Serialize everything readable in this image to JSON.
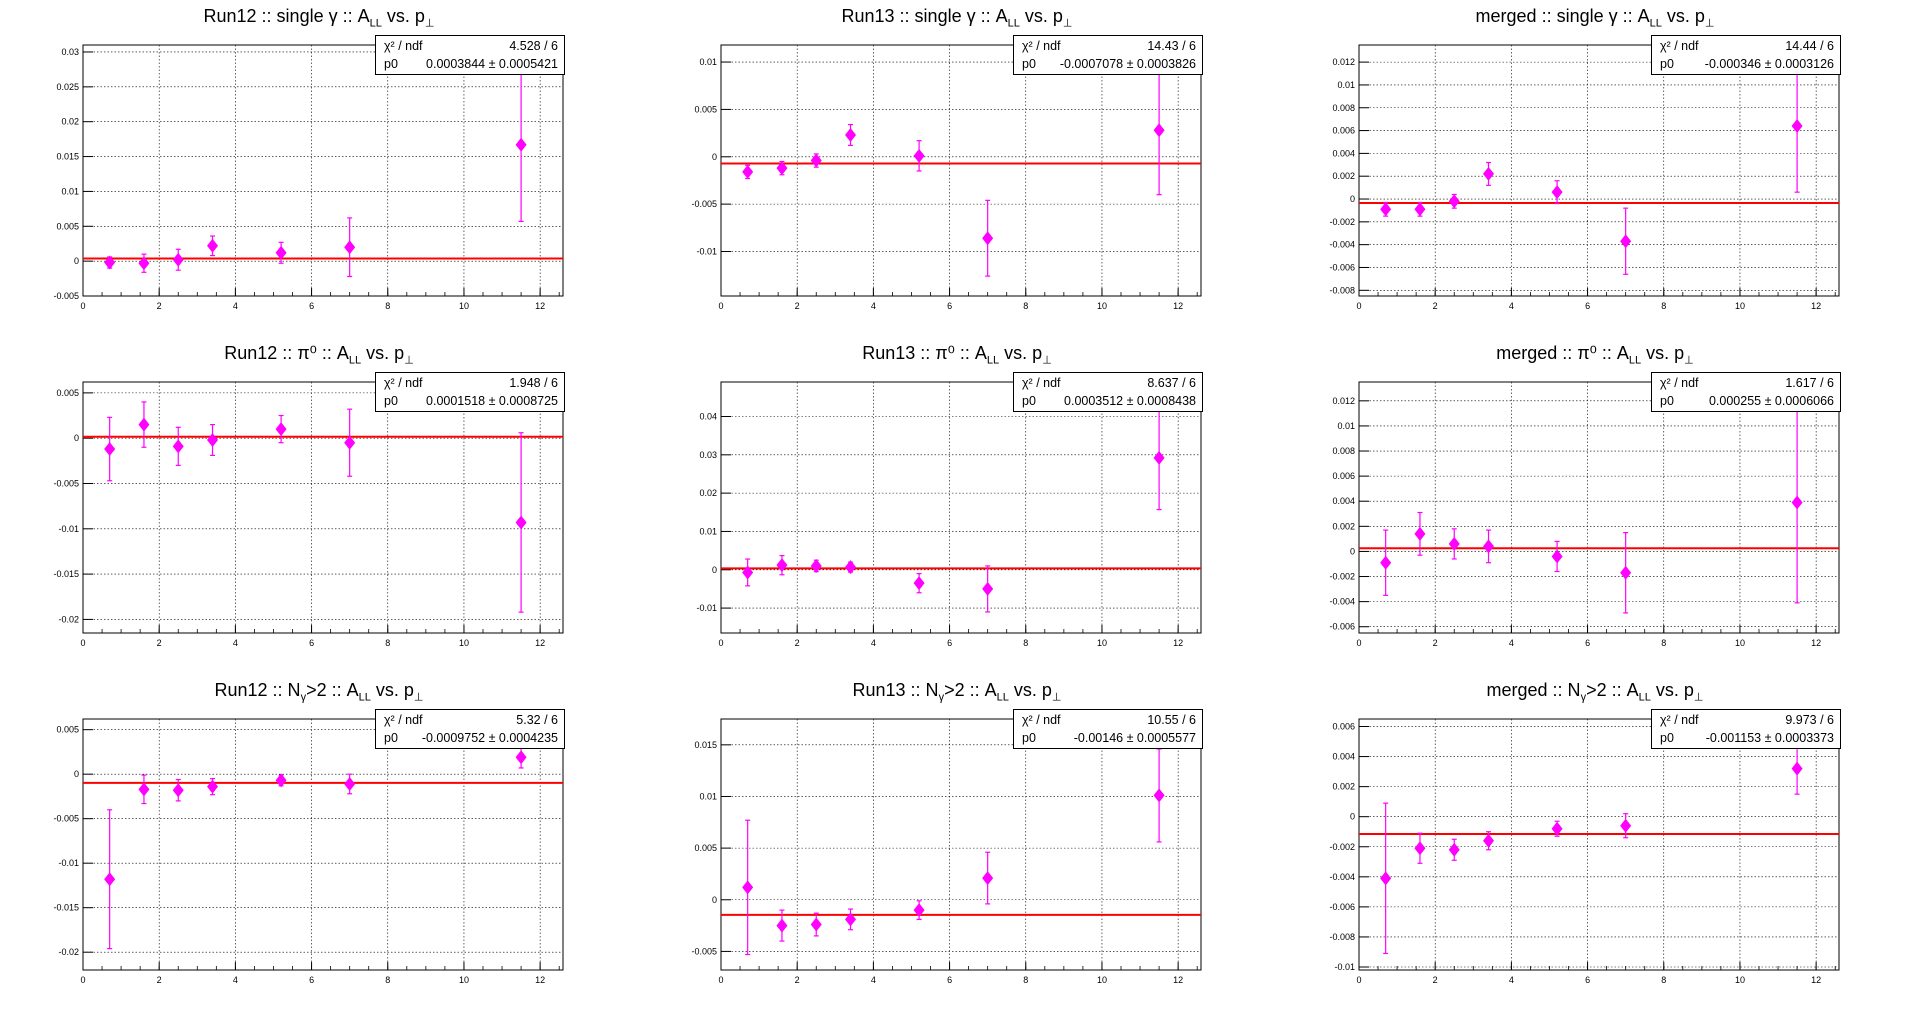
{
  "colors": {
    "marker": "#ff00ff",
    "fit_line": "#ff0000",
    "grid": "#000000"
  },
  "chart_data": [
    {
      "type": "scatter",
      "title": "Run12 :: single γ :: A_LL vs. p_⊥",
      "xlim": [
        0,
        12.6
      ],
      "ylim": [
        -0.005,
        0.031
      ],
      "xticks": [
        "0",
        "2",
        "4",
        "6",
        "8",
        "10",
        "12"
      ],
      "yticks": [
        "-0.005",
        "0",
        "0.005",
        "0.01",
        "0.015",
        "0.02",
        "0.025",
        "0.03"
      ],
      "grid": true,
      "legend": "top-right",
      "stats": {
        "chi2_label": "χ² / ndf",
        "chi2": "4.528 / 6",
        "p0_label": "p0",
        "p0": "0.0003844 ± 0.0005421"
      },
      "fit": 0.0003844,
      "x": [
        0.7,
        1.6,
        2.5,
        3.4,
        5.2,
        7.0,
        11.5
      ],
      "y": [
        -0.0002,
        -0.0003,
        0.0002,
        0.0022,
        0.0012,
        0.002,
        0.0167
      ],
      "err": [
        0.0008,
        0.0013,
        0.0015,
        0.0014,
        0.0015,
        0.0042,
        0.011
      ]
    },
    {
      "type": "scatter",
      "title": "Run13 :: single γ :: A_LL vs. p_⊥",
      "xlim": [
        0,
        12.6
      ],
      "ylim": [
        -0.0147,
        0.0118
      ],
      "xticks": [
        "0",
        "2",
        "4",
        "6",
        "8",
        "10",
        "12"
      ],
      "yticks": [
        "-0.01",
        "-0.005",
        "0",
        "0.005",
        "0.01"
      ],
      "grid": true,
      "legend": "top-right",
      "stats": {
        "chi2_label": "χ² / ndf",
        "chi2": "14.43 / 6",
        "p0_label": "p0",
        "p0": "-0.0007078 ± 0.0003826"
      },
      "fit": -0.0007078,
      "x": [
        0.7,
        1.6,
        2.5,
        3.4,
        5.2,
        7.0,
        11.5
      ],
      "y": [
        -0.0016,
        -0.0012,
        -0.0004,
        0.0023,
        0.0001,
        -0.0086,
        0.0028
      ],
      "err": [
        0.0007,
        0.0007,
        0.0007,
        0.0011,
        0.0016,
        0.004,
        0.0068
      ]
    },
    {
      "type": "scatter",
      "title": "merged :: single γ :: A_LL vs. p_⊥",
      "xlim": [
        0,
        12.6
      ],
      "ylim": [
        -0.0085,
        0.0135
      ],
      "xticks": [
        "0",
        "2",
        "4",
        "6",
        "8",
        "10",
        "12"
      ],
      "yticks": [
        "-0.008",
        "-0.006",
        "-0.004",
        "-0.002",
        "0",
        "0.002",
        "0.004",
        "0.006",
        "0.008",
        "0.01",
        "0.012"
      ],
      "grid": true,
      "legend": "top-right",
      "stats": {
        "chi2_label": "χ² / ndf",
        "chi2": "14.44 / 6",
        "p0_label": "p0",
        "p0": "-0.000346 ± 0.0003126"
      },
      "fit": -0.000346,
      "x": [
        0.7,
        1.6,
        2.5,
        3.4,
        5.2,
        7.0,
        11.5
      ],
      "y": [
        -0.0009,
        -0.0009,
        -0.0002,
        0.0022,
        0.0006,
        -0.0037,
        0.0064
      ],
      "err": [
        0.0006,
        0.0006,
        0.0006,
        0.001,
        0.001,
        0.0029,
        0.0058
      ]
    },
    {
      "type": "scatter",
      "title": "Run12 :: π⁰ :: A_LL vs. p_⊥",
      "xlim": [
        0,
        12.6
      ],
      "ylim": [
        -0.0215,
        0.0062
      ],
      "xticks": [
        "0",
        "2",
        "4",
        "6",
        "8",
        "10",
        "12"
      ],
      "yticks": [
        "-0.02",
        "-0.015",
        "-0.01",
        "-0.005",
        "0",
        "0.005"
      ],
      "grid": true,
      "legend": "top-right",
      "stats": {
        "chi2_label": "χ² / ndf",
        "chi2": "1.948 / 6",
        "p0_label": "p0",
        "p0": "0.0001518 ± 0.0008725"
      },
      "fit": 0.0001518,
      "x": [
        0.7,
        1.6,
        2.5,
        3.4,
        5.2,
        7.0,
        11.5
      ],
      "y": [
        -0.0012,
        0.0015,
        -0.0009,
        -0.0002,
        0.001,
        -0.0005,
        -0.0093
      ],
      "err": [
        0.0035,
        0.0025,
        0.0021,
        0.0017,
        0.0015,
        0.0037,
        0.0099
      ]
    },
    {
      "type": "scatter",
      "title": "Run13 :: π⁰ :: A_LL vs. p_⊥",
      "xlim": [
        0,
        12.6
      ],
      "ylim": [
        -0.0165,
        0.049
      ],
      "xticks": [
        "0",
        "2",
        "4",
        "6",
        "8",
        "10",
        "12"
      ],
      "yticks": [
        "-0.01",
        "0",
        "0.01",
        "0.02",
        "0.03",
        "0.04"
      ],
      "grid": true,
      "legend": "top-right",
      "stats": {
        "chi2_label": "χ² / ndf",
        "chi2": "8.637 / 6",
        "p0_label": "p0",
        "p0": "0.0003512 ± 0.0008438"
      },
      "fit": 0.0003512,
      "x": [
        0.7,
        1.6,
        2.5,
        3.4,
        5.2,
        7.0,
        11.5
      ],
      "y": [
        -0.0007,
        0.0012,
        0.001,
        0.0007,
        -0.0035,
        -0.005,
        0.0292
      ],
      "err": [
        0.0035,
        0.0025,
        0.0015,
        0.0013,
        0.0025,
        0.006,
        0.0135
      ]
    },
    {
      "type": "scatter",
      "title": "merged :: π⁰ :: A_LL vs. p_⊥",
      "xlim": [
        0,
        12.6
      ],
      "ylim": [
        -0.0065,
        0.0135
      ],
      "xticks": [
        "0",
        "2",
        "4",
        "6",
        "8",
        "10",
        "12"
      ],
      "yticks": [
        "-0.006",
        "-0.004",
        "-0.002",
        "0",
        "0.002",
        "0.004",
        "0.006",
        "0.008",
        "0.01",
        "0.012"
      ],
      "grid": true,
      "legend": "top-right",
      "stats": {
        "chi2_label": "χ² / ndf",
        "chi2": "1.617 / 6",
        "p0_label": "p0",
        "p0": "0.000255 ± 0.0006066"
      },
      "fit": 0.000255,
      "x": [
        0.7,
        1.6,
        2.5,
        3.4,
        5.2,
        7.0,
        11.5
      ],
      "y": [
        -0.0009,
        0.0014,
        0.0006,
        0.0004,
        -0.0004,
        -0.0017,
        0.0039
      ],
      "err": [
        0.0026,
        0.0017,
        0.0012,
        0.0013,
        0.0012,
        0.0032,
        0.008
      ]
    },
    {
      "type": "scatter",
      "title": "Run12 :: N_γ>2 :: A_LL vs. p_⊥",
      "xlim": [
        0,
        12.6
      ],
      "ylim": [
        -0.022,
        0.0062
      ],
      "xticks": [
        "0",
        "2",
        "4",
        "6",
        "8",
        "10",
        "12"
      ],
      "yticks": [
        "-0.02",
        "-0.015",
        "-0.01",
        "-0.005",
        "0",
        "0.005"
      ],
      "grid": true,
      "legend": "top-right",
      "stats": {
        "chi2_label": "χ² / ndf",
        "chi2": "5.32 / 6",
        "p0_label": "p0",
        "p0": "-0.0009752 ± 0.0004235"
      },
      "fit": -0.0009752,
      "x": [
        0.7,
        1.6,
        2.5,
        3.4,
        5.2,
        7.0,
        11.5
      ],
      "y": [
        -0.0118,
        -0.0017,
        -0.0018,
        -0.0014,
        -0.0007,
        -0.0011,
        0.0019
      ],
      "err": [
        0.0078,
        0.0016,
        0.0012,
        0.0009,
        0.0006,
        0.0011,
        0.0012
      ]
    },
    {
      "type": "scatter",
      "title": "Run13 :: N_γ>2 :: A_LL vs. p_⊥",
      "xlim": [
        0,
        12.6
      ],
      "ylim": [
        -0.0068,
        0.0175
      ],
      "xticks": [
        "0",
        "2",
        "4",
        "6",
        "8",
        "10",
        "12"
      ],
      "yticks": [
        "-0.005",
        "0",
        "0.005",
        "0.01",
        "0.015"
      ],
      "grid": true,
      "legend": "top-right",
      "stats": {
        "chi2_label": "χ² / ndf",
        "chi2": "10.55 / 6",
        "p0_label": "p0",
        "p0": "-0.00146 ± 0.0005577"
      },
      "fit": -0.00146,
      "x": [
        0.7,
        1.6,
        2.5,
        3.4,
        5.2,
        7.0,
        11.5
      ],
      "y": [
        0.0012,
        -0.0025,
        -0.0024,
        -0.0019,
        -0.001,
        0.0021,
        0.0101
      ],
      "err": [
        0.0065,
        0.0015,
        0.0011,
        0.001,
        0.0009,
        0.0025,
        0.0045
      ]
    },
    {
      "type": "scatter",
      "title": "merged :: N_γ>2 :: A_LL vs. p_⊥",
      "xlim": [
        0,
        12.6
      ],
      "ylim": [
        -0.0102,
        0.0065
      ],
      "xticks": [
        "0",
        "2",
        "4",
        "6",
        "8",
        "10",
        "12"
      ],
      "yticks": [
        "-0.01",
        "-0.008",
        "-0.006",
        "-0.004",
        "-0.002",
        "0",
        "0.002",
        "0.004",
        "0.006"
      ],
      "grid": true,
      "legend": "top-right",
      "stats": {
        "chi2_label": "χ² / ndf",
        "chi2": "9.973 / 6",
        "p0_label": "p0",
        "p0": "-0.001153 ± 0.0003373"
      },
      "fit": -0.001153,
      "x": [
        0.7,
        1.6,
        2.5,
        3.4,
        5.2,
        7.0,
        11.5
      ],
      "y": [
        -0.0041,
        -0.0021,
        -0.0022,
        -0.0016,
        -0.0008,
        -0.0006,
        0.0032
      ],
      "err": [
        0.005,
        0.001,
        0.0007,
        0.0006,
        0.0005,
        0.0008,
        0.0017
      ]
    }
  ]
}
